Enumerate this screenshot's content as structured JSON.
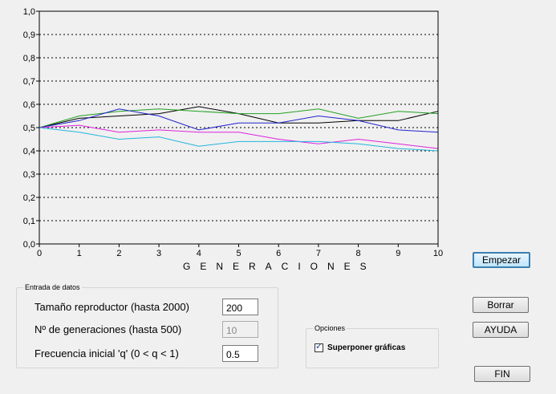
{
  "chart_data": {
    "type": "line",
    "xlabel": "GENERACIONES",
    "ylabel": "",
    "xlim": [
      0,
      10
    ],
    "ylim": [
      0,
      1
    ],
    "grid": "horizontal-dotted",
    "x": [
      0,
      1,
      2,
      3,
      4,
      5,
      6,
      7,
      8,
      9,
      10
    ],
    "x_ticks": [
      "0",
      "1",
      "2",
      "3",
      "4",
      "5",
      "6",
      "7",
      "8",
      "9",
      "10"
    ],
    "y_ticks": [
      "0,0",
      "0,1",
      "0,2",
      "0,3",
      "0,4",
      "0,5",
      "0,6",
      "0,7",
      "0,8",
      "0,9",
      "1,0"
    ],
    "series": [
      {
        "color": "#000000",
        "values": [
          0.5,
          0.54,
          0.55,
          0.56,
          0.59,
          0.56,
          0.52,
          0.52,
          0.53,
          0.53,
          0.57
        ]
      },
      {
        "color": "#22a022",
        "values": [
          0.5,
          0.55,
          0.57,
          0.58,
          0.57,
          0.56,
          0.56,
          0.58,
          0.54,
          0.57,
          0.56
        ]
      },
      {
        "color": "#2222cc",
        "values": [
          0.5,
          0.53,
          0.58,
          0.55,
          0.49,
          0.52,
          0.52,
          0.55,
          0.53,
          0.49,
          0.48
        ]
      },
      {
        "color": "#dd22dd",
        "values": [
          0.5,
          0.51,
          0.48,
          0.49,
          0.48,
          0.48,
          0.45,
          0.43,
          0.45,
          0.43,
          0.41
        ]
      },
      {
        "color": "#22b5dd",
        "values": [
          0.5,
          0.48,
          0.45,
          0.46,
          0.42,
          0.44,
          0.44,
          0.44,
          0.43,
          0.41,
          0.4
        ]
      }
    ]
  },
  "entrada": {
    "title": "Entrada de datos",
    "label_tamano": "Tamaño reproductor (hasta 2000)",
    "value_tamano": "200",
    "label_generaciones": "Nº de generaciones (hasta 500)",
    "value_generaciones": "10",
    "label_frecuencia": "Frecuencia inicial 'q' (0 < q < 1)",
    "value_frecuencia": "0.5"
  },
  "opciones": {
    "title": "Opciones",
    "check_label": "Superponer gráficas",
    "checked": true
  },
  "buttons": {
    "empezar": "Empezar",
    "borrar": "Borrar",
    "ayuda": "AYUDA",
    "fin": "FIN"
  }
}
